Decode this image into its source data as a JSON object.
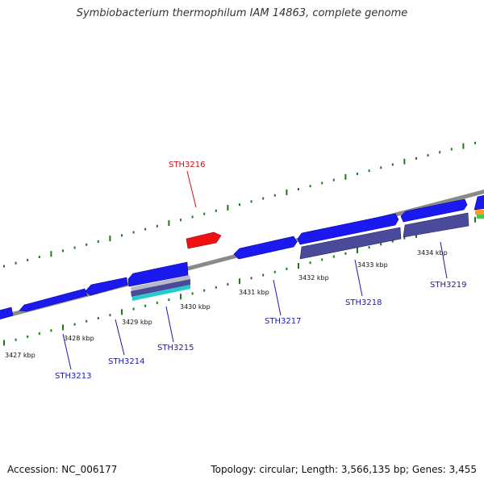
{
  "header": {
    "title": "Symbiobacterium thermophilum IAM 14863, complete genome"
  },
  "footer": {
    "accession": "Accession: NC_006177",
    "summary": "Topology: circular; Length: 3,566,135 bp; Genes: 3,455"
  },
  "colors": {
    "backbone": "#8a8a8a",
    "gene_blue": "#1a1aee",
    "gene_dark": "#3a3a8c",
    "gene_selected": "#ee1111",
    "tick": "#1a7a1a",
    "label_blue": "#1a1aaa",
    "label_red": "#cc1111",
    "gene_cyan": "#22cccc",
    "gene_orange": "#ff9922",
    "gene_green": "#44cc44"
  },
  "scale_labels": [
    "3427 kbp",
    "3428 kbp",
    "3429 kbp",
    "3430 kbp",
    "3431 kbp",
    "3432 kbp",
    "3433 kbp",
    "3434 kbp"
  ],
  "gene_labels": [
    {
      "id": "STH3213",
      "selected": false
    },
    {
      "id": "STH3214",
      "selected": false
    },
    {
      "id": "STH3215",
      "selected": false
    },
    {
      "id": "STH3216",
      "selected": true
    },
    {
      "id": "STH3217",
      "selected": false
    },
    {
      "id": "STH3218",
      "selected": false
    },
    {
      "id": "STH3219",
      "selected": false
    }
  ]
}
